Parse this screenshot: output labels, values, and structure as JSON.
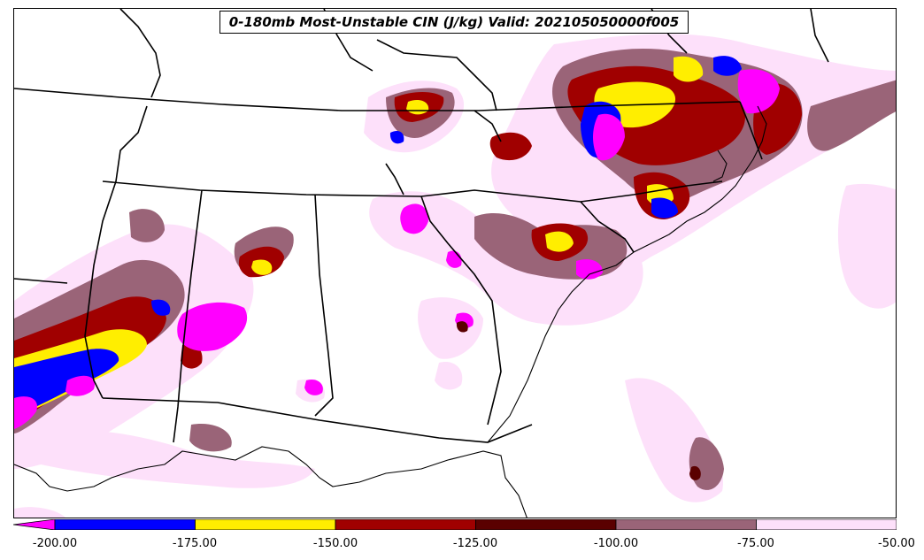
{
  "title": "0-180mb Most-Unstable CIN (J/kg) Valid: 202105050000f005",
  "colorbar": {
    "ticks": [
      "-200.00",
      "-175.00",
      "-150.00",
      "-125.00",
      "-100.00",
      "-75.00",
      "-50.00"
    ],
    "bins": [
      {
        "range": "< -200",
        "color": "#ff00ff"
      },
      {
        "range": "-200 to -175",
        "color": "#0000ff"
      },
      {
        "range": "-175 to -150",
        "color": "#ffee00"
      },
      {
        "range": "-150 to -125",
        "color": "#a00000"
      },
      {
        "range": "-125 to -100",
        "color": "#5a0000"
      },
      {
        "range": "-100 to -75",
        "color": "#9a6478"
      },
      {
        "range": "-75 to -50",
        "color": "#fde0fa"
      }
    ],
    "extend": "min"
  }
}
